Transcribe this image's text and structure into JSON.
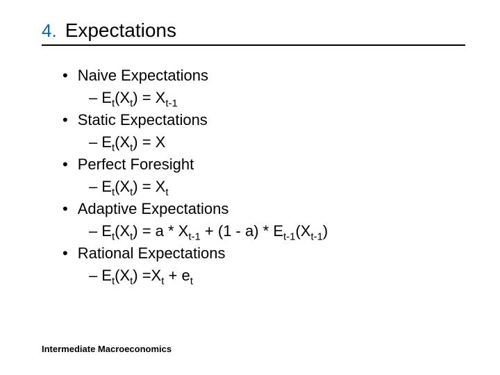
{
  "title": {
    "number": "4.",
    "text": "Expectations"
  },
  "items": [
    {
      "label": "Naive Expectations",
      "formula": "E<sub>t</sub>(X<sub>t</sub>) = X<sub>t-1</sub>"
    },
    {
      "label": "Static Expectations",
      "formula": "E<sub>t</sub>(X<sub>t</sub>) = X"
    },
    {
      "label": "Perfect Foresight",
      "formula": "E<sub>t</sub>(X<sub>t</sub>) = X<sub>t</sub>"
    },
    {
      "label": "Adaptive Expectations",
      "formula": "E<sub>t</sub>(X<sub>t</sub>) = a * X<sub>t-1</sub> + (1 - a) * E<sub>t-1</sub>(X<sub>t-1</sub>)"
    },
    {
      "label": "Rational Expectations",
      "formula": "E<sub>t</sub>(X<sub>t</sub>) =X<sub>t</sub> + e<sub>t</sub>"
    }
  ],
  "footer": "Intermediate Macroeconomics"
}
